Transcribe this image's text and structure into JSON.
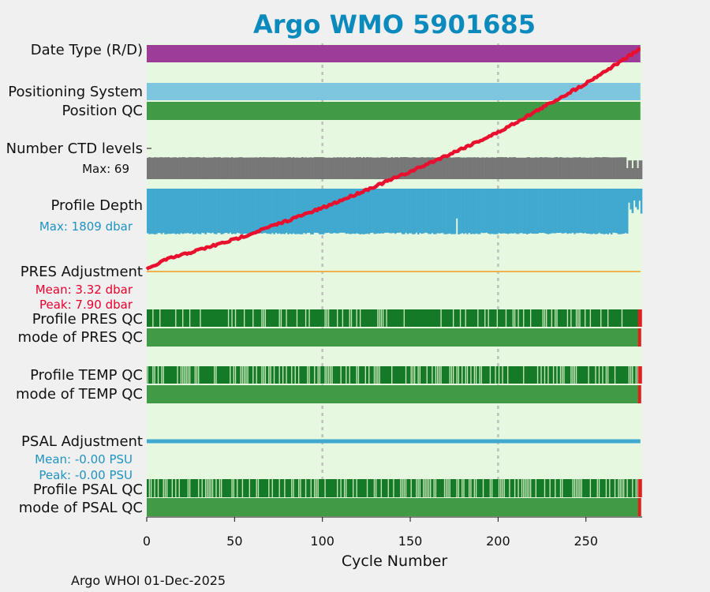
{
  "chart_data": {
    "type": "timeline",
    "title": "Argo WMO 5901685",
    "xlabel": "Cycle Number",
    "xlim": [
      0,
      282
    ],
    "xticks": [
      0,
      50,
      100,
      150,
      200,
      250
    ],
    "grid_lines": [
      100,
      200
    ],
    "last_cycle": 281,
    "rows": [
      {
        "id": "date_type",
        "label": "Date Type (R/D)",
        "color": "#9e3d99"
      },
      {
        "id": "positioning",
        "label": "Positioning System",
        "color": "#7ec6e0"
      },
      {
        "id": "position_qc",
        "label": "Position QC",
        "color": "#419a45"
      },
      {
        "id": "ctd_levels",
        "label": "Number CTD levels",
        "note": "Max: 69",
        "note_color": "#111111",
        "max": 69,
        "color": "#777777"
      },
      {
        "id": "profile_depth",
        "label": "Profile Depth",
        "note": "Max: 1809 dbar",
        "note_color": "#1f93c2",
        "max": 1809,
        "color": "#41a9cf"
      },
      {
        "id": "pres_adj",
        "label": "PRES Adjustment",
        "notes": [
          "Mean: 3.32 dbar",
          "Peak: 7.90 dbar"
        ],
        "note_color": "#e8002d",
        "line_color": "#f0b050",
        "mean": 3.32,
        "peak": 7.9
      },
      {
        "id": "profile_pres_qc",
        "label": "Profile PRES QC",
        "color": "#147a28"
      },
      {
        "id": "mode_pres_qc",
        "label": "mode of PRES QC",
        "color": "#419a45"
      },
      {
        "id": "profile_temp_qc",
        "label": "Profile TEMP QC",
        "color": "#147a28"
      },
      {
        "id": "mode_temp_qc",
        "label": "mode of TEMP QC",
        "color": "#419a45"
      },
      {
        "id": "psal_adj",
        "label": "PSAL Adjustment",
        "notes": [
          "Mean: -0.00 PSU",
          "Peak: -0.00 PSU"
        ],
        "note_color": "#1f93c2",
        "line_color": "#41a9cf",
        "mean": -0.0,
        "peak": -0.0
      },
      {
        "id": "profile_psal_qc",
        "label": "Profile PSAL QC",
        "color": "#147a28"
      },
      {
        "id": "mode_psal_qc",
        "label": "mode of PSAL QC",
        "color": "#419a45"
      }
    ],
    "date_line": {
      "color": "#e8102e",
      "points": [
        [
          0,
          2000.0
        ],
        [
          10,
          2001.0
        ],
        [
          50,
          2003.1
        ],
        [
          100,
          2006.3
        ],
        [
          150,
          2010.0
        ],
        [
          200,
          2014.0
        ],
        [
          250,
          2019.0
        ],
        [
          281,
          2022.5
        ]
      ]
    },
    "colors": {
      "background": "#e6f8e0",
      "qc_bad": "#c8e6b8",
      "qc_flag": "#e02020"
    }
  },
  "footer": "Argo WHOI 01-Dec-2025"
}
